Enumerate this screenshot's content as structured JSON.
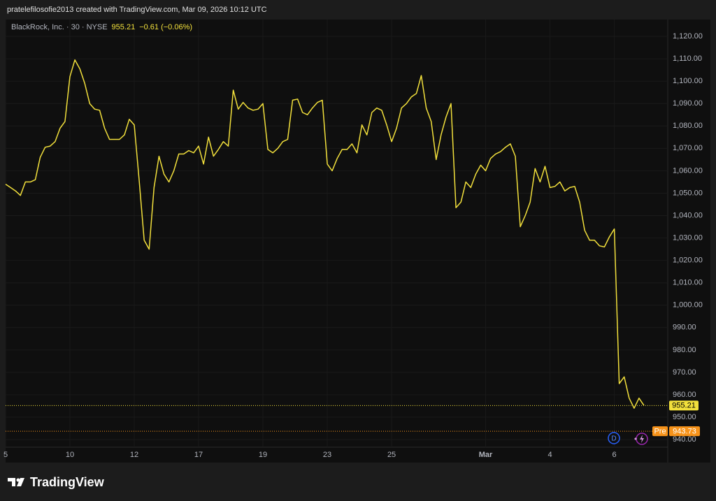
{
  "header": {
    "attribution": "pratelefilosofie2013 created with TradingView.com, Mar 09, 2026 10:12 UTC"
  },
  "footer": {
    "brand": "TradingView"
  },
  "chart_data": {
    "type": "line",
    "legend": {
      "symbol": "BlackRock, Inc. · 30 · NYSE",
      "change": "−0.61 (−0.06%)"
    },
    "series": [
      {
        "name": "BlackRock, Inc.",
        "color": "#f2e03c",
        "values": [
          1054,
          1052.5,
          1051,
          1049,
          1055,
          1055,
          1056,
          1066,
          1070.5,
          1071,
          1073,
          1079,
          1082,
          1102,
          1109.5,
          1105.5,
          1099,
          1090,
          1087.5,
          1087,
          1079,
          1074,
          1074,
          1074,
          1076,
          1083,
          1080.5,
          1055.5,
          1029,
          1025,
          1052.5,
          1066.5,
          1058.5,
          1055,
          1060,
          1067.5,
          1067.5,
          1069,
          1068,
          1071,
          1063,
          1075,
          1066.5,
          1069.5,
          1073,
          1071,
          1096,
          1087.5,
          1090.5,
          1088,
          1087,
          1087.5,
          1090,
          1069.5,
          1068,
          1070,
          1073,
          1074,
          1091.5,
          1092,
          1086,
          1085,
          1088,
          1090.5,
          1091.5,
          1063,
          1060,
          1065.5,
          1069.5,
          1069.5,
          1072,
          1068,
          1080.5,
          1076,
          1086,
          1088,
          1087,
          1080.5,
          1073,
          1079,
          1088,
          1090,
          1093,
          1094.5,
          1102.5,
          1088,
          1082,
          1065,
          1076,
          1084,
          1090,
          1043.5,
          1046,
          1055,
          1052.5,
          1058.5,
          1062.5,
          1060,
          1065.5,
          1067.5,
          1068.5,
          1070.5,
          1072,
          1066.5,
          1035,
          1040,
          1046,
          1061,
          1055,
          1062,
          1052.5,
          1053,
          1055,
          1051,
          1052.5,
          1053,
          1046,
          1033.5,
          1029,
          1029,
          1026.5,
          1026,
          1030.5,
          1034,
          965,
          968,
          958.5,
          954,
          958.5,
          955.21
        ]
      }
    ],
    "premarket": {
      "label": "Pre",
      "value": 943.73,
      "color": "#f7931a"
    },
    "event": {
      "dividend": "D"
    },
    "xlim": [
      0,
      133.8
    ],
    "xticks": [
      {
        "value": 0,
        "label": "5"
      },
      {
        "value": 13,
        "label": "10"
      },
      {
        "value": 26,
        "label": "12"
      },
      {
        "value": 39,
        "label": "17"
      },
      {
        "value": 52,
        "label": "19"
      },
      {
        "value": 65,
        "label": "23"
      },
      {
        "value": 78,
        "label": "25"
      },
      {
        "value": 97,
        "label": "Mar"
      },
      {
        "value": 110,
        "label": "4"
      },
      {
        "value": 123,
        "label": "6"
      }
    ],
    "ylim": [
      936.6,
      1127.5
    ],
    "yticks": [
      {
        "value": 940,
        "label": "940.00"
      },
      {
        "value": 950,
        "label": "950.00"
      },
      {
        "value": 960,
        "label": "960.00"
      },
      {
        "value": 970,
        "label": "970.00"
      },
      {
        "value": 980,
        "label": "980.00"
      },
      {
        "value": 990,
        "label": "990.00"
      },
      {
        "value": 1000,
        "label": "1,000.00"
      },
      {
        "value": 1010,
        "label": "1,010.00"
      },
      {
        "value": 1020,
        "label": "1,020.00"
      },
      {
        "value": 1030,
        "label": "1,030.00"
      },
      {
        "value": 1040,
        "label": "1,040.00"
      },
      {
        "value": 1050,
        "label": "1,050.00"
      },
      {
        "value": 1060,
        "label": "1,060.00"
      },
      {
        "value": 1070,
        "label": "1,070.00"
      },
      {
        "value": 1080,
        "label": "1,080.00"
      },
      {
        "value": 1090,
        "label": "1,090.00"
      },
      {
        "value": 1100,
        "label": "1,100.00"
      },
      {
        "value": 1110,
        "label": "1,110.00"
      },
      {
        "value": 1120,
        "label": "1,120.00"
      }
    ],
    "grid": true
  }
}
